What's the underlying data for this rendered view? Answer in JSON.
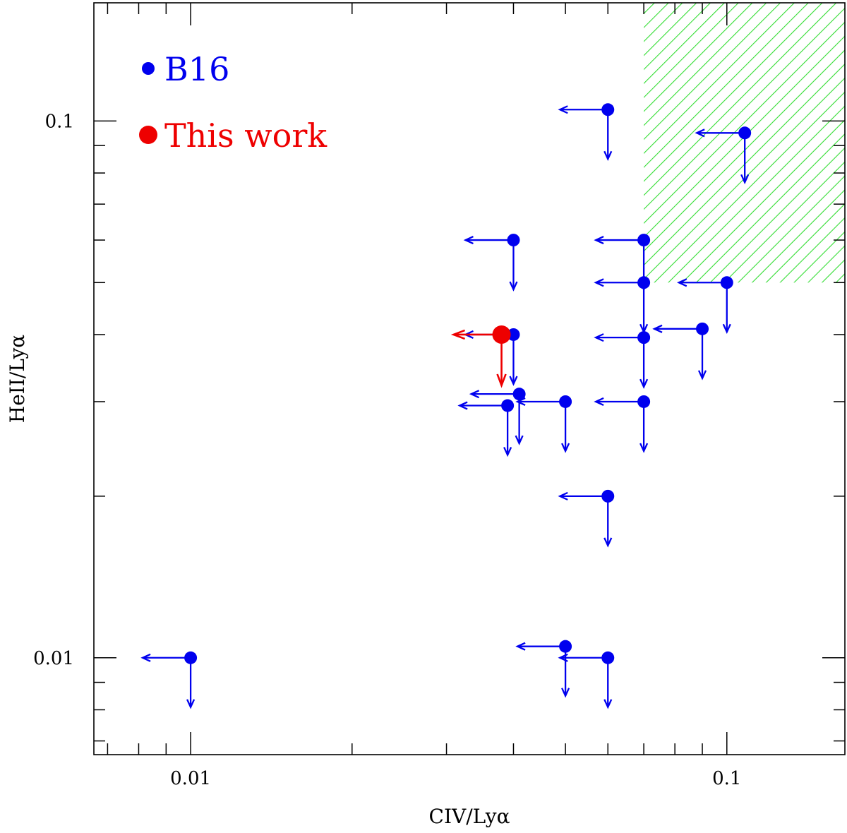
{
  "chart_data": {
    "type": "scatter",
    "xlabel": "CIV/Lyα",
    "ylabel": "HeII/Lyα",
    "xscale": "log",
    "yscale": "log",
    "xlim": [
      0.0066,
      0.166
    ],
    "ylim": [
      0.0066,
      0.166
    ],
    "x_tick_labels": [
      "0.01",
      "0.1"
    ],
    "y_tick_labels": [
      "0.01",
      "0.1"
    ],
    "grid": false,
    "legend_placement": "top-left",
    "upper_limits": "all points are upper limits on both axes (arrows toward lower values)",
    "shaded_region": {
      "description": "green hatched region",
      "x_range": [
        0.07,
        0.166
      ],
      "y_range": [
        0.05,
        0.166
      ],
      "color": "#33dd33"
    },
    "series": [
      {
        "name": "B16",
        "color": "#0000ee",
        "points": [
          {
            "x": 0.06,
            "y": 0.105
          },
          {
            "x": 0.108,
            "y": 0.095
          },
          {
            "x": 0.04,
            "y": 0.06
          },
          {
            "x": 0.07,
            "y": 0.06
          },
          {
            "x": 0.07,
            "y": 0.05
          },
          {
            "x": 0.1,
            "y": 0.05
          },
          {
            "x": 0.04,
            "y": 0.04
          },
          {
            "x": 0.07,
            "y": 0.0395
          },
          {
            "x": 0.09,
            "y": 0.041
          },
          {
            "x": 0.041,
            "y": 0.031
          },
          {
            "x": 0.05,
            "y": 0.03
          },
          {
            "x": 0.039,
            "y": 0.0295
          },
          {
            "x": 0.07,
            "y": 0.03
          },
          {
            "x": 0.06,
            "y": 0.02
          },
          {
            "x": 0.01,
            "y": 0.01
          },
          {
            "x": 0.05,
            "y": 0.0105
          },
          {
            "x": 0.06,
            "y": 0.01
          }
        ]
      },
      {
        "name": "This work",
        "color": "#ee0000",
        "points": [
          {
            "x": 0.038,
            "y": 0.04
          }
        ]
      }
    ]
  }
}
